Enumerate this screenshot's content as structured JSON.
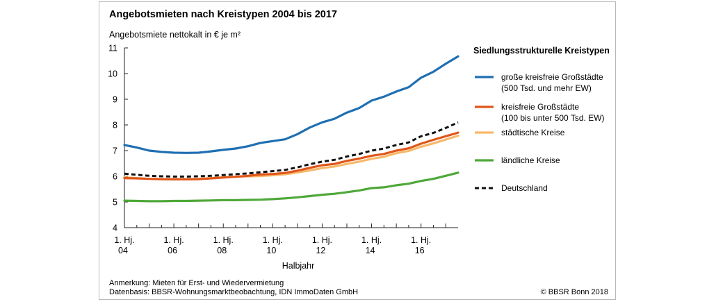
{
  "chart_data": {
    "type": "line",
    "title": "Angebotsmieten nach Kreistypen 2004 bis 2017",
    "ylabel": "Angebotsmiete nettokalt in € je m²",
    "xlabel": "Halbjahr",
    "ylim": [
      4,
      11
    ],
    "yticks": [
      "4",
      "5",
      "6",
      "7",
      "8",
      "9",
      "10",
      "11"
    ],
    "x": [
      2004.0,
      2004.5,
      2005.0,
      2005.5,
      2006.0,
      2006.5,
      2007.0,
      2007.5,
      2008.0,
      2008.5,
      2009.0,
      2009.5,
      2010.0,
      2010.5,
      2011.0,
      2011.5,
      2012.0,
      2012.5,
      2013.0,
      2013.5,
      2014.0,
      2014.5,
      2015.0,
      2015.5,
      2016.0,
      2016.5,
      2017.0,
      2017.5
    ],
    "xticks": [
      {
        "x": 2004,
        "line1": "1. Hj.",
        "line2": "04"
      },
      {
        "x": 2006,
        "line1": "1. Hj.",
        "line2": "06"
      },
      {
        "x": 2008,
        "line1": "1. Hj.",
        "line2": "08"
      },
      {
        "x": 2010,
        "line1": "1. Hj.",
        "line2": "10"
      },
      {
        "x": 2012,
        "line1": "1. Hj.",
        "line2": "12"
      },
      {
        "x": 2014,
        "line1": "1. Hj.",
        "line2": "14"
      },
      {
        "x": 2016,
        "line1": "1. Hj.",
        "line2": "16"
      }
    ],
    "legend_title": "Siedlungsstrukturelle Kreistypen",
    "series": [
      {
        "name": "große kreisfreie Großstädte",
        "name2": "(500 Tsd. und mehr EW)",
        "color": "#1f6fb2",
        "dash": false,
        "values": [
          7.22,
          7.12,
          7.0,
          6.95,
          6.92,
          6.91,
          6.92,
          6.97,
          7.03,
          7.08,
          7.17,
          7.3,
          7.37,
          7.44,
          7.64,
          7.9,
          8.1,
          8.24,
          8.48,
          8.66,
          8.95,
          9.1,
          9.3,
          9.47,
          9.84,
          10.07,
          10.38,
          10.67
        ]
      },
      {
        "name": "kreisfreie Großstädte",
        "name2": "(100 bis unter 500 Tsd. EW)",
        "color": "#e0561a",
        "dash": false,
        "values": [
          5.93,
          5.92,
          5.9,
          5.89,
          5.88,
          5.88,
          5.89,
          5.92,
          5.95,
          5.98,
          6.02,
          6.07,
          6.09,
          6.13,
          6.22,
          6.33,
          6.43,
          6.48,
          6.6,
          6.69,
          6.8,
          6.87,
          7.0,
          7.09,
          7.27,
          7.42,
          7.56,
          7.7
        ]
      },
      {
        "name": "städtische Kreise",
        "name2": "",
        "color": "#f6b96b",
        "dash": false,
        "values": [
          5.96,
          5.93,
          5.9,
          5.89,
          5.88,
          5.89,
          5.9,
          5.93,
          5.96,
          5.98,
          6.0,
          6.01,
          6.04,
          6.08,
          6.15,
          6.23,
          6.32,
          6.38,
          6.48,
          6.57,
          6.68,
          6.76,
          6.9,
          6.99,
          7.15,
          7.28,
          7.43,
          7.58
        ]
      },
      {
        "name": "ländliche Kreise",
        "name2": "",
        "color": "#4fa83a",
        "dash": false,
        "values": [
          5.05,
          5.04,
          5.03,
          5.03,
          5.04,
          5.04,
          5.05,
          5.06,
          5.07,
          5.07,
          5.08,
          5.09,
          5.11,
          5.14,
          5.18,
          5.23,
          5.28,
          5.32,
          5.38,
          5.45,
          5.54,
          5.57,
          5.65,
          5.71,
          5.82,
          5.9,
          6.02,
          6.14
        ]
      },
      {
        "name": "Deutschland",
        "name2": "",
        "color": "#111111",
        "dash": true,
        "values": [
          6.1,
          6.06,
          6.02,
          6.0,
          5.99,
          5.99,
          6.0,
          6.02,
          6.05,
          6.08,
          6.11,
          6.16,
          6.2,
          6.25,
          6.35,
          6.47,
          6.57,
          6.64,
          6.77,
          6.87,
          7.0,
          7.08,
          7.22,
          7.32,
          7.56,
          7.69,
          7.88,
          8.1
        ]
      }
    ]
  },
  "notes": {
    "line1": "Anmerkung: Mieten für Erst- und Wiedervermietung",
    "line2": "Datenbasis: BBSR-Wohnungsmarktbeobachtung, IDN ImmoDaten GmbH",
    "copyright": "© BBSR Bonn 2018"
  }
}
